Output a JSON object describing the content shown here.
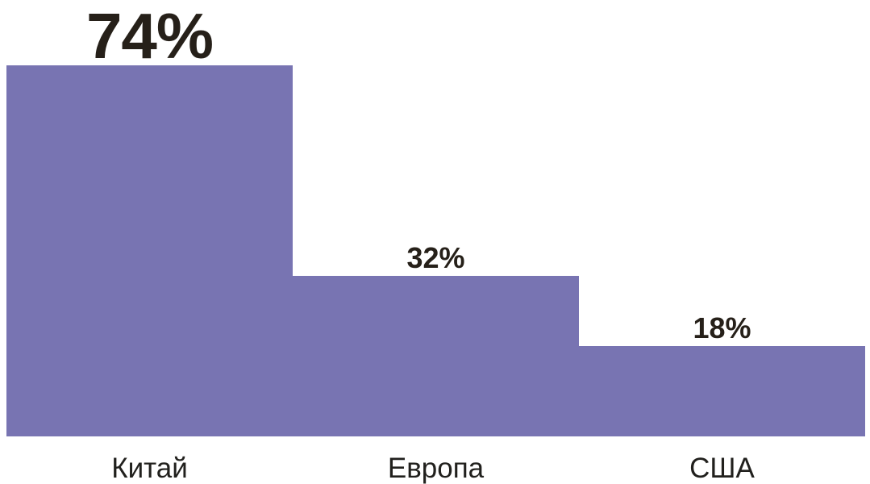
{
  "chart_data": {
    "type": "bar",
    "title": "",
    "xlabel": "",
    "ylabel": "",
    "categories": [
      "Китай",
      "Европа",
      "США"
    ],
    "values": [
      74,
      32,
      18
    ],
    "value_labels": [
      "74%",
      "32%",
      "18%"
    ],
    "unit": "%",
    "ylim": [
      0,
      87
    ],
    "bar_color": "#7874b2",
    "value_label_color": "#262019",
    "category_label_color": "#21201d",
    "background_color": "#ffffff",
    "layout": {
      "grid": false,
      "legend": false,
      "axes_visible": false,
      "bar_gap": 0,
      "value_label_position": "above-bar",
      "first_value_emphasized": true
    }
  }
}
